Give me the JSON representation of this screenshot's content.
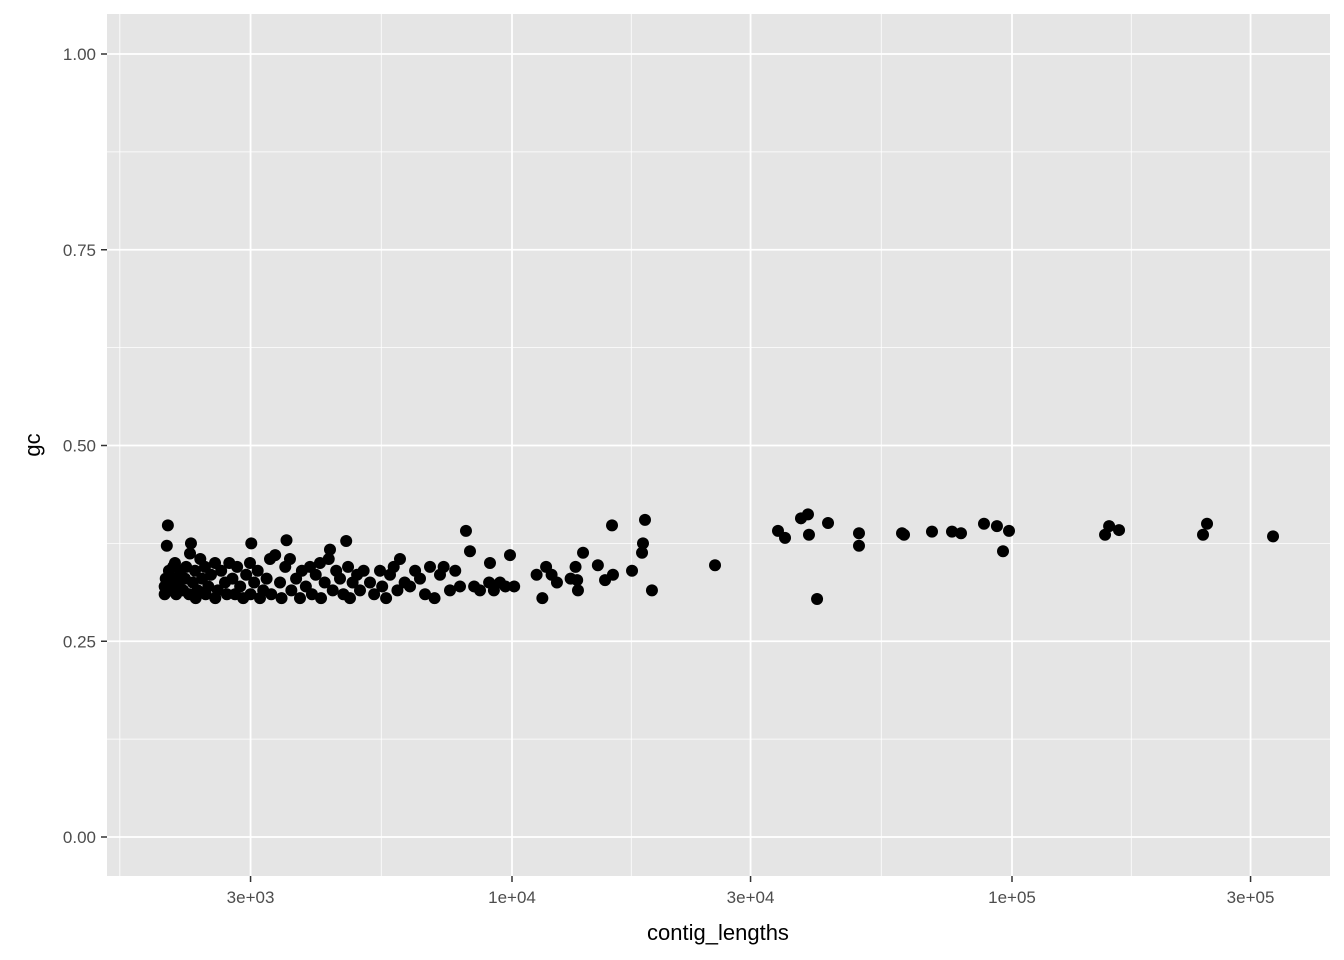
{
  "chart_data": {
    "type": "scatter",
    "xlabel": "contig_lengths",
    "ylabel": "gc",
    "x_scale": "log10",
    "xlim": [
      1850,
      400000
    ],
    "ylim": [
      -0.05,
      1.05
    ],
    "x_ticks": [
      {
        "value": 3000,
        "label": "3e+03"
      },
      {
        "value": 10000,
        "label": "1e+04"
      },
      {
        "value": 30000,
        "label": "3e+04"
      },
      {
        "value": 100000,
        "label": "1e+05"
      },
      {
        "value": 300000,
        "label": "3e+05"
      }
    ],
    "y_ticks": [
      {
        "value": 0,
        "label": "0.00"
      },
      {
        "value": 0.25,
        "label": "0.25"
      },
      {
        "value": 0.5,
        "label": "0.50"
      },
      {
        "value": 0.75,
        "label": "0.75"
      },
      {
        "value": 1,
        "label": "1.00"
      }
    ],
    "grid": true,
    "point_color": "#000000",
    "panel_color": "#E5E5E5",
    "points": [
      [
        2050,
        0.398
      ],
      [
        2040,
        0.372
      ],
      [
        2020,
        0.31
      ],
      [
        2020,
        0.32
      ],
      [
        2030,
        0.33
      ],
      [
        2060,
        0.34
      ],
      [
        2070,
        0.315
      ],
      [
        2080,
        0.325
      ],
      [
        2100,
        0.345
      ],
      [
        2118,
        0.35
      ],
      [
        2118,
        0.33
      ],
      [
        2130,
        0.31
      ],
      [
        2150,
        0.32
      ],
      [
        2170,
        0.34
      ],
      [
        2200,
        0.315
      ],
      [
        2218,
        0.33
      ],
      [
        2230,
        0.345
      ],
      [
        2260,
        0.31
      ],
      [
        2280,
        0.375
      ],
      [
        2270,
        0.362
      ],
      [
        2300,
        0.325
      ],
      [
        2323,
        0.34
      ],
      [
        2330,
        0.305
      ],
      [
        2350,
        0.315
      ],
      [
        2380,
        0.355
      ],
      [
        2400,
        0.33
      ],
      [
        2432,
        0.345
      ],
      [
        2440,
        0.31
      ],
      [
        2470,
        0.32
      ],
      [
        2500,
        0.335
      ],
      [
        2547,
        0.35
      ],
      [
        2550,
        0.305
      ],
      [
        2580,
        0.315
      ],
      [
        2620,
        0.34
      ],
      [
        2667,
        0.325
      ],
      [
        2690,
        0.31
      ],
      [
        2720,
        0.35
      ],
      [
        2760,
        0.33
      ],
      [
        2793,
        0.31
      ],
      [
        2820,
        0.345
      ],
      [
        2860,
        0.32
      ],
      [
        2900,
        0.305
      ],
      [
        2940,
        0.335
      ],
      [
        2992,
        0.35
      ],
      [
        3010,
        0.375
      ],
      [
        3000,
        0.31
      ],
      [
        3050,
        0.325
      ],
      [
        3100,
        0.34
      ],
      [
        3133,
        0.305
      ],
      [
        3180,
        0.315
      ],
      [
        3230,
        0.33
      ],
      [
        3281,
        0.355
      ],
      [
        3300,
        0.31
      ],
      [
        3360,
        0.36
      ],
      [
        3436,
        0.325
      ],
      [
        3460,
        0.305
      ],
      [
        3540,
        0.379
      ],
      [
        3520,
        0.345
      ],
      [
        3597,
        0.355
      ],
      [
        3620,
        0.315
      ],
      [
        3700,
        0.33
      ],
      [
        3767,
        0.305
      ],
      [
        3800,
        0.34
      ],
      [
        3870,
        0.32
      ],
      [
        3945,
        0.345
      ],
      [
        3980,
        0.31
      ],
      [
        4050,
        0.335
      ],
      [
        4130,
        0.35
      ],
      [
        4150,
        0.305
      ],
      [
        4220,
        0.325
      ],
      [
        4325,
        0.367
      ],
      [
        4300,
        0.355
      ],
      [
        4380,
        0.315
      ],
      [
        4450,
        0.34
      ],
      [
        4529,
        0.33
      ],
      [
        4600,
        0.31
      ],
      [
        4660,
        0.378
      ],
      [
        4700,
        0.345
      ],
      [
        4742,
        0.305
      ],
      [
        4800,
        0.325
      ],
      [
        4900,
        0.335
      ],
      [
        4966,
        0.315
      ],
      [
        5050,
        0.34
      ],
      [
        5200,
        0.325
      ],
      [
        5300,
        0.31
      ],
      [
        5445,
        0.34
      ],
      [
        5500,
        0.32
      ],
      [
        5600,
        0.305
      ],
      [
        5702,
        0.335
      ],
      [
        5800,
        0.345
      ],
      [
        5900,
        0.315
      ],
      [
        5970,
        0.355
      ],
      [
        6100,
        0.325
      ],
      [
        6252,
        0.32
      ],
      [
        6400,
        0.34
      ],
      [
        6546,
        0.33
      ],
      [
        6700,
        0.31
      ],
      [
        6855,
        0.345
      ],
      [
        7000,
        0.305
      ],
      [
        7178,
        0.335
      ],
      [
        7300,
        0.345
      ],
      [
        7516,
        0.315
      ],
      [
        7700,
        0.34
      ],
      [
        7870,
        0.32
      ],
      [
        8090,
        0.391
      ],
      [
        8241,
        0.365
      ],
      [
        8400,
        0.32
      ],
      [
        8630,
        0.315
      ],
      [
        9036,
        0.35
      ],
      [
        9000,
        0.325
      ],
      [
        9200,
        0.315
      ],
      [
        9462,
        0.325
      ],
      [
        9700,
        0.32
      ],
      [
        9908,
        0.36
      ],
      [
        10100,
        0.32
      ],
      [
        11200,
        0.335
      ],
      [
        11500,
        0.305
      ],
      [
        11700,
        0.345
      ],
      [
        12000,
        0.335
      ],
      [
        12300,
        0.325
      ],
      [
        13100,
        0.33
      ],
      [
        13400,
        0.345
      ],
      [
        13500,
        0.328
      ],
      [
        13550,
        0.315
      ],
      [
        13870,
        0.363
      ],
      [
        14850,
        0.347
      ],
      [
        15350,
        0.328
      ],
      [
        15850,
        0.398
      ],
      [
        15920,
        0.335
      ],
      [
        17380,
        0.34
      ],
      [
        18200,
        0.363
      ],
      [
        18280,
        0.375
      ],
      [
        18450,
        0.405
      ],
      [
        19050,
        0.315
      ],
      [
        25470,
        0.347
      ],
      [
        34040,
        0.391
      ],
      [
        35160,
        0.382
      ],
      [
        37840,
        0.407
      ],
      [
        39080,
        0.412
      ],
      [
        39260,
        0.386
      ],
      [
        40750,
        0.304
      ],
      [
        42860,
        0.401
      ],
      [
        49430,
        0.388
      ],
      [
        49430,
        0.372
      ],
      [
        60260,
        0.388
      ],
      [
        60820,
        0.386
      ],
      [
        69180,
        0.39
      ],
      [
        75860,
        0.39
      ],
      [
        79070,
        0.388
      ],
      [
        87900,
        0.4
      ],
      [
        93300,
        0.397
      ],
      [
        95940,
        0.365
      ],
      [
        98630,
        0.391
      ],
      [
        153500,
        0.386
      ],
      [
        156400,
        0.397
      ],
      [
        163700,
        0.392
      ],
      [
        241000,
        0.386
      ],
      [
        245500,
        0.4
      ],
      [
        332700,
        0.384
      ]
    ]
  }
}
